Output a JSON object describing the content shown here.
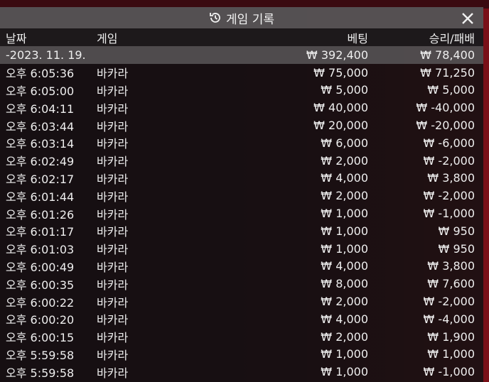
{
  "dialog": {
    "title": "게임 기록",
    "title_icon": "history-icon",
    "close_icon": "close-icon"
  },
  "columns": {
    "date": "날짜",
    "game": "게임",
    "bet": "베팅",
    "result": "승리/패배"
  },
  "summary": {
    "date": "-2023. 11. 19.",
    "bet": "₩ 392,400",
    "result": "₩ 78,400"
  },
  "rows": [
    {
      "date": "오후 6:05:36",
      "game": "바카라",
      "bet": "₩ 75,000",
      "result": "₩ 71,250"
    },
    {
      "date": "오후 6:05:00",
      "game": "바카라",
      "bet": "₩ 5,000",
      "result": "₩ 5,000"
    },
    {
      "date": "오후 6:04:11",
      "game": "바카라",
      "bet": "₩ 40,000",
      "result": "₩ -40,000"
    },
    {
      "date": "오후 6:03:44",
      "game": "바카라",
      "bet": "₩ 20,000",
      "result": "₩ -20,000"
    },
    {
      "date": "오후 6:03:14",
      "game": "바카라",
      "bet": "₩ 6,000",
      "result": "₩ -6,000"
    },
    {
      "date": "오후 6:02:49",
      "game": "바카라",
      "bet": "₩ 2,000",
      "result": "₩ -2,000"
    },
    {
      "date": "오후 6:02:17",
      "game": "바카라",
      "bet": "₩ 4,000",
      "result": "₩ 3,800"
    },
    {
      "date": "오후 6:01:44",
      "game": "바카라",
      "bet": "₩ 2,000",
      "result": "₩ -2,000"
    },
    {
      "date": "오후 6:01:26",
      "game": "바카라",
      "bet": "₩ 1,000",
      "result": "₩ -1,000"
    },
    {
      "date": "오후 6:01:17",
      "game": "바카라",
      "bet": "₩ 1,000",
      "result": "₩ 950"
    },
    {
      "date": "오후 6:01:03",
      "game": "바카라",
      "bet": "₩ 1,000",
      "result": "₩ 950"
    },
    {
      "date": "오후 6:00:49",
      "game": "바카라",
      "bet": "₩ 4,000",
      "result": "₩ 3,800"
    },
    {
      "date": "오후 6:00:35",
      "game": "바카라",
      "bet": "₩ 8,000",
      "result": "₩ 7,600"
    },
    {
      "date": "오후 6:00:22",
      "game": "바카라",
      "bet": "₩ 2,000",
      "result": "₩ -2,000"
    },
    {
      "date": "오후 6:00:20",
      "game": "바카라",
      "bet": "₩ 4,000",
      "result": "₩ -4,000"
    },
    {
      "date": "오후 6:00:15",
      "game": "바카라",
      "bet": "₩ 2,000",
      "result": "₩ 1,900"
    },
    {
      "date": "오후 5:59:58",
      "game": "바카라",
      "bet": "₩ 1,000",
      "result": "₩ 1,000"
    },
    {
      "date": "오후 5:59:58",
      "game": "바카라",
      "bet": "₩ 1,000",
      "result": "₩ -1,000"
    }
  ]
}
